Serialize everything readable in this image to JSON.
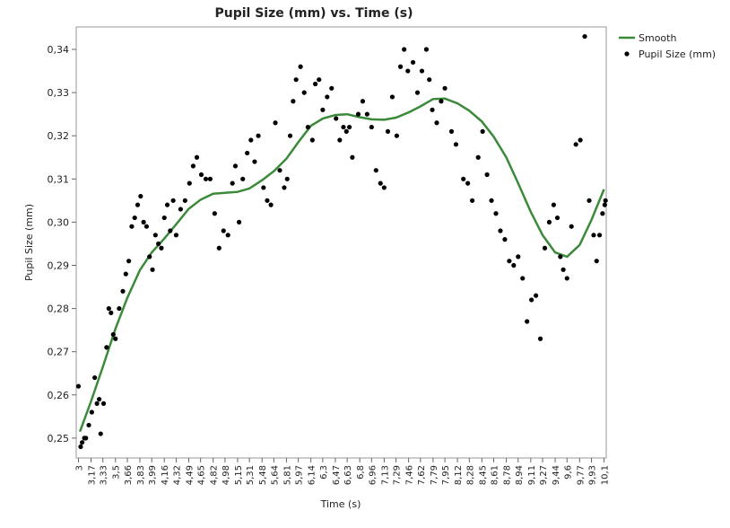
{
  "chart_data": {
    "type": "scatter",
    "title": "Pupil Size (mm) vs. Time (s)",
    "xlabel": "Time (s)",
    "ylabel": "Pupil Size (mm)",
    "xlim": [
      2.97,
      10.13
    ],
    "ylim": [
      0.2454,
      0.3452
    ],
    "xticks": [
      3,
      {
        "value": 3.17,
        "label": "3,17"
      },
      {
        "value": 3.33,
        "label": "3,33"
      },
      {
        "value": 3.5,
        "label": "3,5"
      },
      {
        "value": 3.66,
        "label": "3,66"
      },
      {
        "value": 3.83,
        "label": "3,83"
      },
      {
        "value": 3.99,
        "label": "3,99"
      },
      {
        "value": 4.16,
        "label": "4,16"
      },
      {
        "value": 4.32,
        "label": "4,32"
      },
      {
        "value": 4.49,
        "label": "4,49"
      },
      {
        "value": 4.65,
        "label": "4,65"
      },
      {
        "value": 4.82,
        "label": "4,82"
      },
      {
        "value": 4.98,
        "label": "4,98"
      },
      {
        "value": 5.15,
        "label": "5,15"
      },
      {
        "value": 5.31,
        "label": "5,31"
      },
      {
        "value": 5.48,
        "label": "5,48"
      },
      {
        "value": 5.64,
        "label": "5,64"
      },
      {
        "value": 5.81,
        "label": "5,81"
      },
      {
        "value": 5.97,
        "label": "5,97"
      },
      {
        "value": 6.14,
        "label": "6,14"
      },
      {
        "value": 6.3,
        "label": "6,3"
      },
      {
        "value": 6.47,
        "label": "6,47"
      },
      {
        "value": 6.63,
        "label": "6,63"
      },
      {
        "value": 6.8,
        "label": "6,8"
      },
      {
        "value": 6.96,
        "label": "6,96"
      },
      {
        "value": 7.13,
        "label": "7,13"
      },
      {
        "value": 7.29,
        "label": "7,29"
      },
      {
        "value": 7.46,
        "label": "7,46"
      },
      {
        "value": 7.62,
        "label": "7,62"
      },
      {
        "value": 7.79,
        "label": "7,79"
      },
      {
        "value": 7.95,
        "label": "7,95"
      },
      {
        "value": 8.12,
        "label": "8,12"
      },
      {
        "value": 8.28,
        "label": "8,28"
      },
      {
        "value": 8.45,
        "label": "8,45"
      },
      {
        "value": 8.61,
        "label": "8,61"
      },
      {
        "value": 8.78,
        "label": "8,78"
      },
      {
        "value": 8.94,
        "label": "8,94"
      },
      {
        "value": 9.11,
        "label": "9,11"
      },
      {
        "value": 9.27,
        "label": "9,27"
      },
      {
        "value": 9.44,
        "label": "9,44"
      },
      {
        "value": 9.6,
        "label": "9,6"
      },
      {
        "value": 9.77,
        "label": "9,77"
      },
      {
        "value": 9.93,
        "label": "9,93"
      },
      {
        "value": 10.1,
        "label": "10,1"
      }
    ],
    "yticks": [
      {
        "value": 0.25,
        "label": "0,25"
      },
      {
        "value": 0.26,
        "label": "0,26"
      },
      {
        "value": 0.27,
        "label": "0,27"
      },
      {
        "value": 0.28,
        "label": "0,28"
      },
      {
        "value": 0.29,
        "label": "0,29"
      },
      {
        "value": 0.3,
        "label": "0,30"
      },
      {
        "value": 0.31,
        "label": "0,31"
      },
      {
        "value": 0.32,
        "label": "0,32"
      },
      {
        "value": 0.33,
        "label": "0,33"
      },
      {
        "value": 0.34,
        "label": "0,34"
      }
    ],
    "legend": "right",
    "series": [
      {
        "name": "Smooth",
        "type": "line",
        "color": "#3a8a3a",
        "x": [
          3.02,
          3.17,
          3.33,
          3.5,
          3.66,
          3.83,
          3.99,
          4.16,
          4.32,
          4.49,
          4.65,
          4.82,
          4.98,
          5.15,
          5.31,
          5.48,
          5.64,
          5.81,
          5.97,
          6.14,
          6.3,
          6.47,
          6.63,
          6.8,
          6.96,
          7.13,
          7.29,
          7.46,
          7.62,
          7.79,
          7.95,
          8.12,
          8.28,
          8.45,
          8.61,
          8.78,
          8.94,
          9.11,
          9.27,
          9.44,
          9.6,
          9.77,
          9.93,
          10.1
        ],
        "values": [
          0.2515,
          0.2585,
          0.2665,
          0.2753,
          0.2825,
          0.2889,
          0.293,
          0.2962,
          0.2995,
          0.3031,
          0.3052,
          0.3066,
          0.3068,
          0.307,
          0.3078,
          0.3097,
          0.3118,
          0.3147,
          0.3185,
          0.3223,
          0.324,
          0.3248,
          0.325,
          0.3243,
          0.3238,
          0.3237,
          0.3242,
          0.3254,
          0.3268,
          0.3285,
          0.3286,
          0.3275,
          0.3258,
          0.3233,
          0.3198,
          0.315,
          0.309,
          0.3024,
          0.297,
          0.293,
          0.292,
          0.2947,
          0.3005,
          0.3076
        ]
      },
      {
        "name": "Pupil Size (mm)",
        "type": "scatter",
        "color": "#000000",
        "x": [
          3.0,
          3.03,
          3.05,
          3.08,
          3.1,
          3.14,
          3.18,
          3.22,
          3.25,
          3.28,
          3.3,
          3.34,
          3.38,
          3.41,
          3.44,
          3.47,
          3.5,
          3.55,
          3.6,
          3.64,
          3.68,
          3.72,
          3.76,
          3.8,
          3.84,
          3.88,
          3.92,
          3.96,
          4.0,
          4.04,
          4.08,
          4.12,
          4.16,
          4.2,
          4.24,
          4.28,
          4.32,
          4.38,
          4.44,
          4.5,
          4.55,
          4.6,
          4.66,
          4.72,
          4.78,
          4.84,
          4.9,
          4.96,
          5.02,
          5.08,
          5.12,
          5.17,
          5.22,
          5.28,
          5.33,
          5.38,
          5.43,
          5.5,
          5.55,
          5.6,
          5.66,
          5.72,
          5.78,
          5.82,
          5.86,
          5.9,
          5.94,
          6.0,
          6.05,
          6.1,
          6.16,
          6.2,
          6.25,
          6.3,
          6.36,
          6.42,
          6.48,
          6.53,
          6.58,
          6.62,
          6.66,
          6.7,
          6.78,
          6.84,
          6.9,
          6.96,
          7.02,
          7.08,
          7.13,
          7.18,
          7.24,
          7.3,
          7.35,
          7.4,
          7.45,
          7.52,
          7.58,
          7.64,
          7.7,
          7.74,
          7.78,
          7.84,
          7.9,
          7.95,
          8.04,
          8.1,
          8.2,
          8.26,
          8.32,
          8.4,
          8.46,
          8.52,
          8.58,
          8.64,
          8.7,
          8.76,
          8.82,
          8.88,
          8.94,
          9.0,
          9.06,
          9.12,
          9.18,
          9.24,
          9.3,
          9.36,
          9.42,
          9.47,
          9.51,
          9.55,
          9.6,
          9.66,
          9.72,
          9.78,
          9.84,
          9.9,
          9.96,
          10.0,
          10.04,
          10.08,
          10.11,
          10.12
        ],
        "values": [
          0.262,
          0.248,
          0.249,
          0.25,
          0.25,
          0.253,
          0.256,
          0.264,
          0.258,
          0.259,
          0.251,
          0.258,
          0.271,
          0.28,
          0.279,
          0.274,
          0.273,
          0.28,
          0.284,
          0.288,
          0.291,
          0.299,
          0.301,
          0.304,
          0.306,
          0.3,
          0.299,
          0.292,
          0.289,
          0.297,
          0.295,
          0.294,
          0.301,
          0.304,
          0.298,
          0.305,
          0.297,
          0.303,
          0.305,
          0.309,
          0.313,
          0.315,
          0.311,
          0.31,
          0.31,
          0.302,
          0.294,
          0.298,
          0.297,
          0.309,
          0.313,
          0.3,
          0.31,
          0.316,
          0.319,
          0.314,
          0.32,
          0.308,
          0.305,
          0.304,
          0.323,
          0.312,
          0.308,
          0.31,
          0.32,
          0.328,
          0.333,
          0.336,
          0.33,
          0.322,
          0.319,
          0.332,
          0.333,
          0.326,
          0.329,
          0.331,
          0.324,
          0.319,
          0.322,
          0.321,
          0.322,
          0.315,
          0.325,
          0.328,
          0.325,
          0.322,
          0.312,
          0.309,
          0.308,
          0.321,
          0.329,
          0.32,
          0.336,
          0.34,
          0.335,
          0.337,
          0.33,
          0.335,
          0.34,
          0.333,
          0.326,
          0.323,
          0.328,
          0.331,
          0.321,
          0.318,
          0.31,
          0.309,
          0.305,
          0.315,
          0.321,
          0.311,
          0.305,
          0.302,
          0.298,
          0.296,
          0.291,
          0.29,
          0.292,
          0.287,
          0.277,
          0.282,
          0.283,
          0.273,
          0.294,
          0.3,
          0.304,
          0.301,
          0.292,
          0.289,
          0.287,
          0.299,
          0.318,
          0.319,
          0.343,
          0.305,
          0.297,
          0.291,
          0.297,
          0.302,
          0.304,
          0.305
        ]
      }
    ]
  }
}
